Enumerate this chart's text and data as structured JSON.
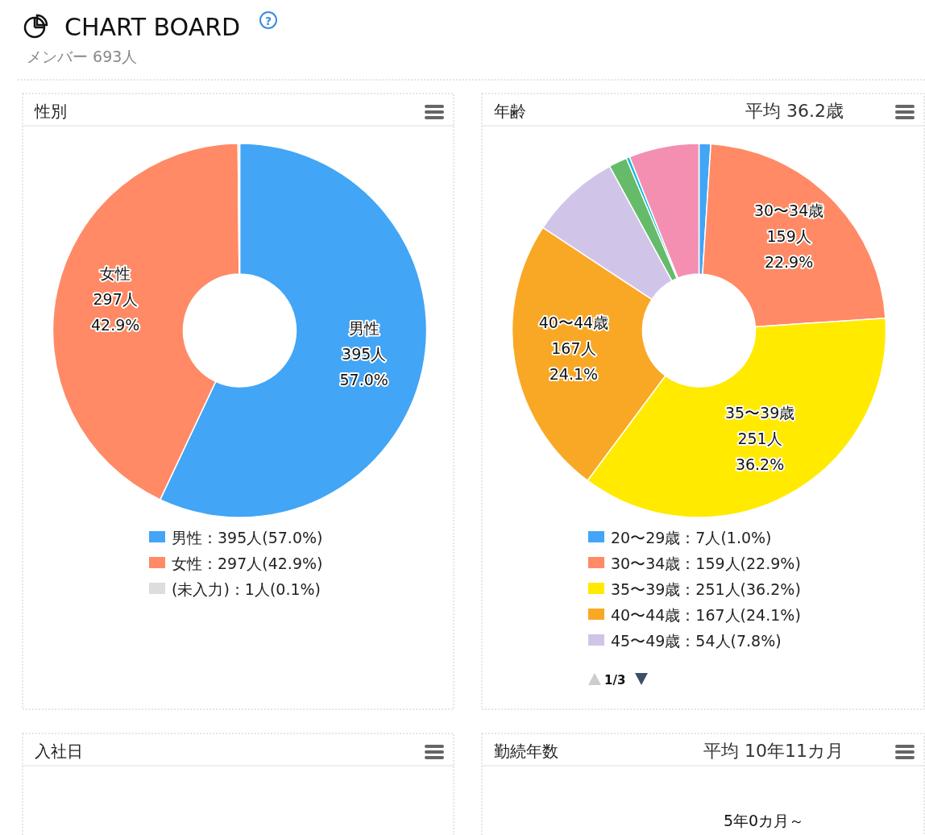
{
  "chart_data": [
    {
      "type": "other",
      "title": "CHART BOARD",
      "subtitle": "メンバー 693人",
      "annotations": [
        "?"
      ]
    },
    {
      "type": "donut",
      "title": "性別",
      "categories": [
        "男性",
        "女性",
        "(未入力)"
      ],
      "values": [
        395,
        297,
        1
      ],
      "colors": [
        "#42a5f5",
        "#ff8a65",
        "#dddddd"
      ],
      "value_labels": [
        "：395人(57.0%)",
        "：297人(42.9%)",
        "：1人(0.1%)"
      ],
      "legend": "bottom",
      "annotations": [
        {
          "text": "男性\n395人\n57.0%",
          "x": "男性"
        },
        {
          "text": "女性\n297人\n42.9%",
          "x": "女性"
        }
      ]
    },
    {
      "type": "donut",
      "title": "年齢",
      "categories": [
        "20〜29歳",
        "30〜34歳",
        "35〜39歳",
        "40〜44歳",
        "45〜49歳",
        null,
        null,
        null
      ],
      "values": [
        7,
        159,
        251,
        167,
        54,
        11,
        2,
        42
      ],
      "colors": [
        "#42a5f5",
        "#ff8a65",
        "#ffea00",
        "#f9a825",
        "#d1c4e9",
        "#66bb6a",
        "#00bcd4",
        "#f48fb1"
      ],
      "value_labels": [
        "：7人(1.0%)",
        "：159人(22.9%)",
        "：251人(36.2%)",
        "：167人(24.1%)",
        "：54人(7.8%)",
        null,
        null,
        null
      ],
      "legend": "bottom",
      "annotations": [
        "平均 36.2歳",
        "1/3",
        {
          "text": "30〜34歳\n159人\n22.9%",
          "x": "30〜34歳"
        },
        {
          "text": "35〜39歳\n251人\n36.2%",
          "x": "35〜39歳"
        },
        {
          "text": "40〜44歳\n167人\n24.1%",
          "x": "40〜44歳"
        }
      ]
    },
    {
      "type": "other",
      "title": "入社日"
    },
    {
      "type": "other",
      "title": "勤続年数",
      "annotations": [
        "平均 10年11カ月",
        "5年0カ月～"
      ]
    }
  ]
}
